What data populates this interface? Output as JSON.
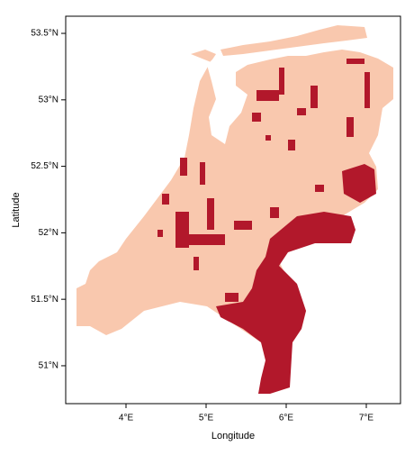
{
  "chart_data": {
    "type": "map",
    "xlabel": "Longitude",
    "ylabel": "Latitude",
    "xlim": [
      3.247,
      7.427
    ],
    "ylim": [
      50.715,
      53.629
    ],
    "xticks": [
      {
        "value": 4,
        "label": "4°E"
      },
      {
        "value": 5,
        "label": "5°E"
      },
      {
        "value": 6,
        "label": "6°E"
      },
      {
        "value": 7,
        "label": "7°E"
      }
    ],
    "yticks": [
      {
        "value": 51,
        "label": "51°N"
      },
      {
        "value": 51.5,
        "label": "51.5°N"
      },
      {
        "value": 52,
        "label": "52°N"
      },
      {
        "value": 52.5,
        "label": "52.5°N"
      },
      {
        "value": 53,
        "label": "53°N"
      },
      {
        "value": 53.5,
        "label": "53.5°N"
      }
    ]
  }
}
